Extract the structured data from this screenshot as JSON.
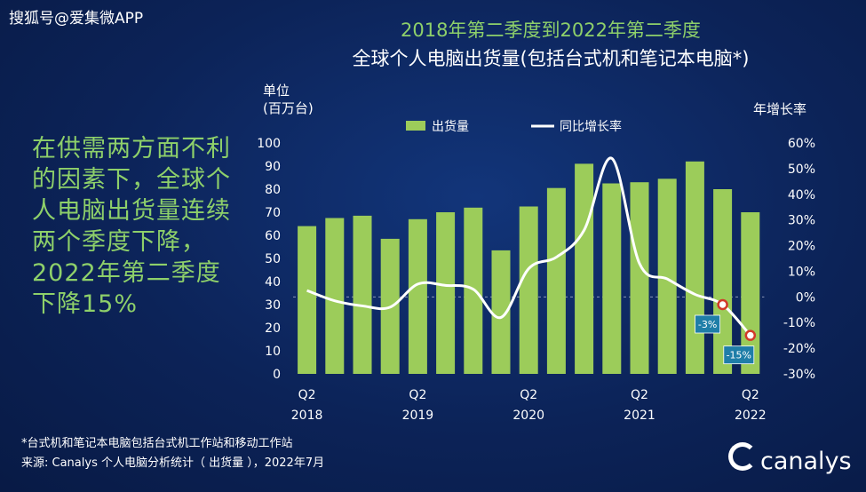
{
  "watermark": "搜狐号@爱集微APP",
  "title_line1": "2018年第二季度到2022年第二季度",
  "title_line2": "全球个人电脑出货量(包括台式机和笔记本电脑*)",
  "left_unit_line1": "单位",
  "left_unit_line2": "(百万台)",
  "right_unit": "年增长率",
  "callout": {
    "part1": "在供需两方面不利的因素下，全球个人电脑出货量连续两个季度下降，",
    "part2": "2022年第二季度下降15%"
  },
  "footnote1": "*台式机和笔记本电脑包括台式机工作站和移动工作站",
  "footnote2": "来源: Canalys 个人电脑分析统计（ 出货量 ），2022年7月",
  "logo_text": "canalys",
  "colors": {
    "bar": "#9ccc5a",
    "line": "#ffffff",
    "bg": "#0c2358",
    "accent_green": "#8ed06a",
    "badge": "#1f7ea8"
  },
  "chart_data": {
    "type": "bar",
    "x": [
      "Q2 2018",
      "Q3 2018",
      "Q4 2018",
      "Q1 2019",
      "Q2 2019",
      "Q3 2019",
      "Q4 2019",
      "Q1 2020",
      "Q2 2020",
      "Q3 2020",
      "Q4 2020",
      "Q1 2021",
      "Q2 2021",
      "Q3 2021",
      "Q4 2021",
      "Q1 2022",
      "Q2 2022"
    ],
    "x_tick_labels": [
      {
        "index": 0,
        "quarter": "Q2",
        "year": "2018"
      },
      {
        "index": 4,
        "quarter": "Q2",
        "year": "2019"
      },
      {
        "index": 8,
        "quarter": "Q2",
        "year": "2020"
      },
      {
        "index": 12,
        "quarter": "Q2",
        "year": "2021"
      },
      {
        "index": 16,
        "quarter": "Q2",
        "year": "2022"
      }
    ],
    "series": [
      {
        "name": "出货量",
        "type": "bar",
        "axis": "left",
        "values": [
          64,
          67.5,
          68.5,
          58.5,
          67,
          70,
          72,
          53.5,
          72.5,
          80.5,
          91,
          82.5,
          83,
          84.5,
          92,
          80,
          70
        ]
      },
      {
        "name": "同比增长率",
        "type": "line",
        "axis": "right",
        "values": [
          2.5,
          -1.5,
          -3.5,
          -4,
          5,
          4.5,
          3,
          -8,
          11,
          15.5,
          26,
          54,
          13,
          7,
          1,
          -3,
          -15
        ]
      }
    ],
    "left_axis": {
      "ylim": [
        0,
        100
      ],
      "ticks": [
        0,
        10,
        20,
        30,
        40,
        50,
        60,
        70,
        80,
        90,
        100
      ]
    },
    "right_axis": {
      "ylim": [
        -30,
        60
      ],
      "ticks": [
        "60%",
        "50%",
        "40%",
        "30%",
        "20%",
        "10%",
        "0%",
        "-10%",
        "-20%",
        "-30%"
      ]
    },
    "annotations": [
      {
        "index": 15,
        "label": "-3%"
      },
      {
        "index": 16,
        "label": "-15%"
      }
    ],
    "legend_position": "top"
  }
}
